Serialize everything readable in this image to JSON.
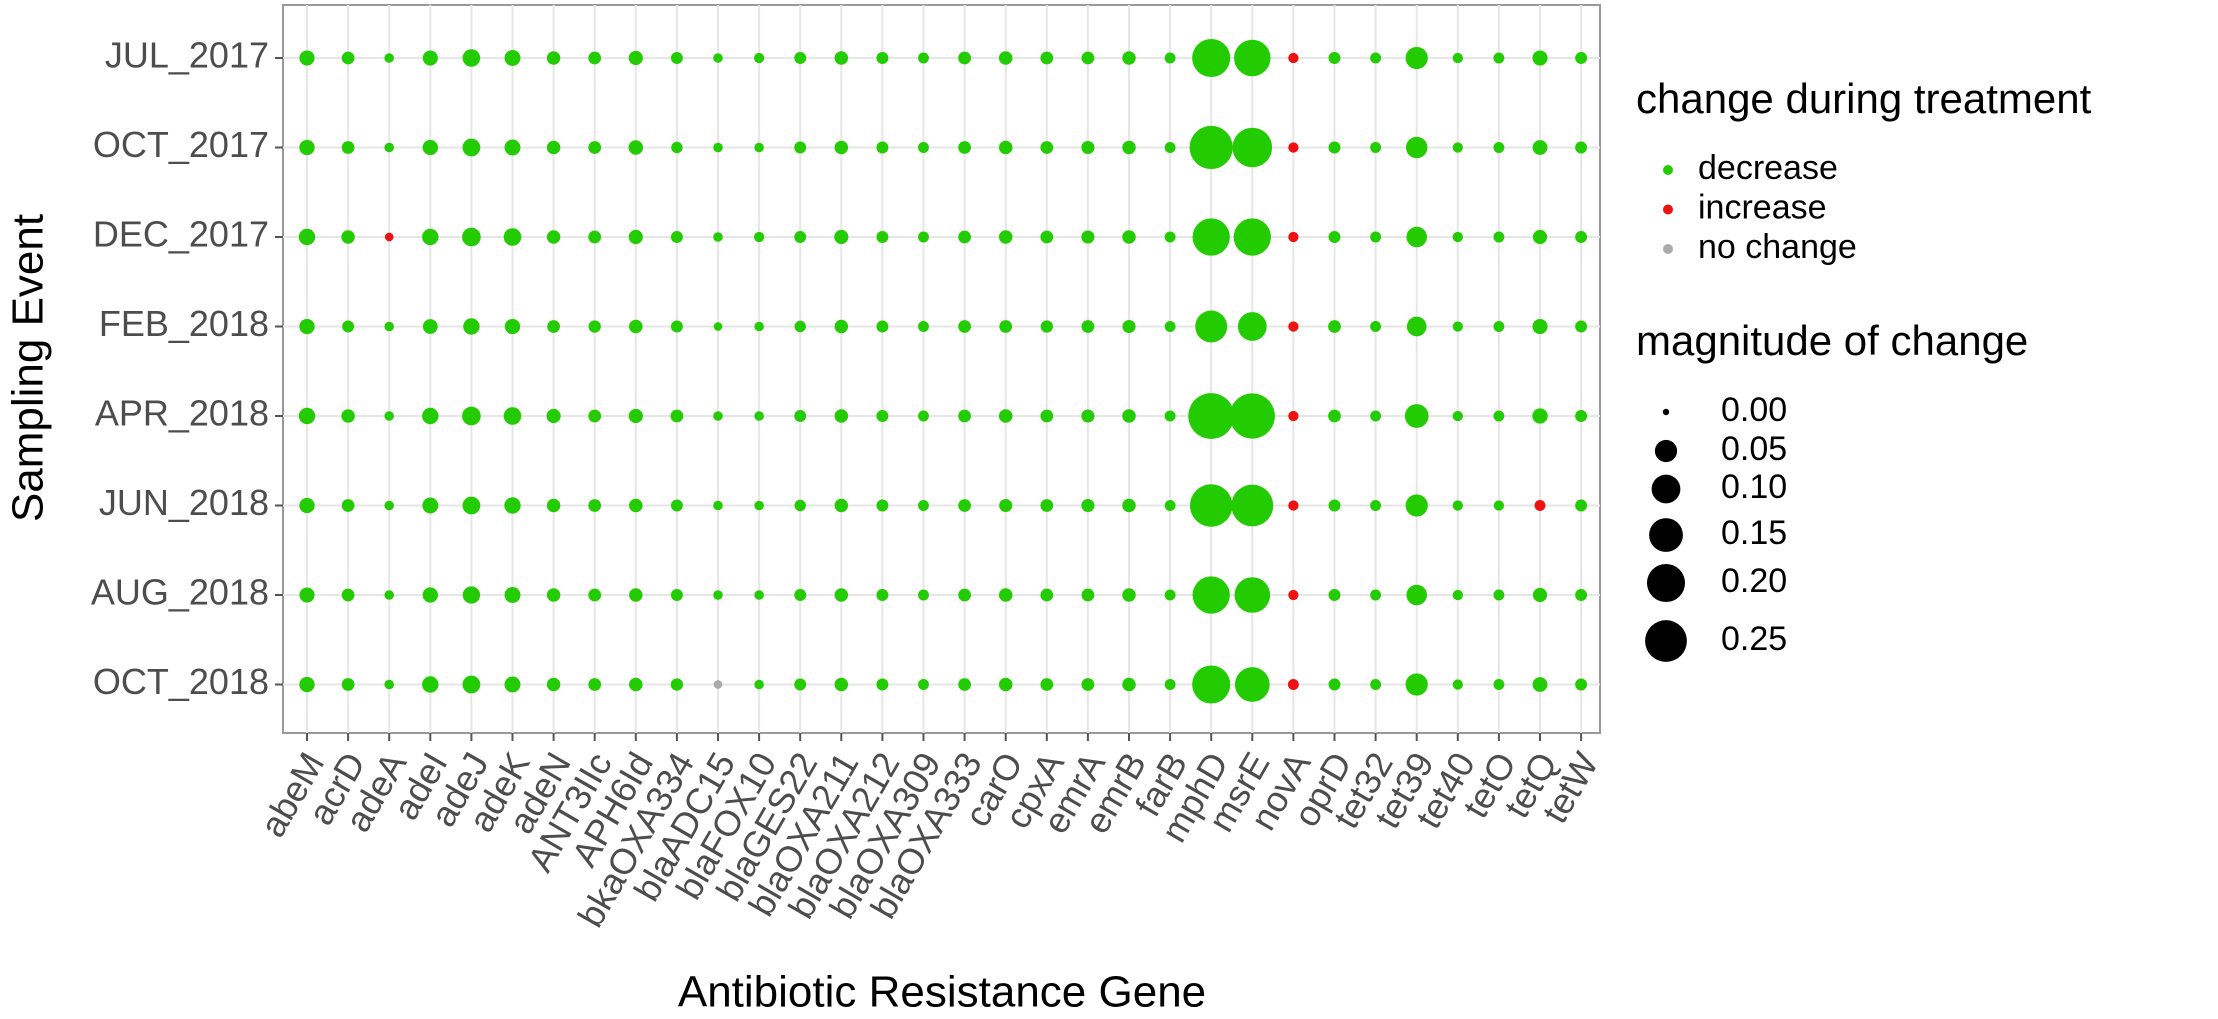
{
  "chart_data": {
    "type": "dotgrid",
    "x_label": "Antibiotic Resistance Gene",
    "y_label": "Sampling Event",
    "genes": [
      "abeM",
      "acrD",
      "adeA",
      "adeI",
      "adeJ",
      "adeK",
      "adeN",
      "ANT3IIc",
      "APH6Id",
      "bkaOXA334",
      "blaADC15",
      "blaFOX10",
      "blaGES22",
      "blaOXA211",
      "blaOXA212",
      "blaOXA309",
      "blaOXA333",
      "carO",
      "cpxA",
      "emrA",
      "emrB",
      "farB",
      "mphD",
      "msrE",
      "novA",
      "oprD",
      "tet32",
      "tet39",
      "tet40",
      "tetO",
      "tetQ",
      "tetW"
    ],
    "events": [
      "JUL_2017",
      "OCT_2017",
      "DEC_2017",
      "FEB_2018",
      "APR_2018",
      "JUN_2018",
      "AUG_2018",
      "OCT_2018"
    ],
    "color_legend": {
      "title": "change during treatment",
      "categories": [
        {
          "name": "decrease",
          "color": "#22cc00"
        },
        {
          "name": "increase",
          "color": "#ee1111"
        },
        {
          "name": "no change",
          "color": "#aaaaaa"
        }
      ]
    },
    "size_legend": {
      "title": "magnitude of change",
      "values": [
        {
          "value": 0,
          "label": "0.00"
        },
        {
          "value": 0.05,
          "label": "0.05"
        },
        {
          "value": 0.1,
          "label": "0.10"
        },
        {
          "value": 0.15,
          "label": "0.15"
        },
        {
          "value": 0.2,
          "label": "0.20"
        },
        {
          "value": 0.25,
          "label": "0.25"
        }
      ]
    },
    "magnitude": [
      [
        0.015,
        0.008,
        0.002,
        0.015,
        0.025,
        0.018,
        0.01,
        0.008,
        0.012,
        0.006,
        0.002,
        0.003,
        0.006,
        0.01,
        0.006,
        0.004,
        0.008,
        0.01,
        0.008,
        0.008,
        0.01,
        0.004,
        0.2,
        0.18,
        0.003,
        0.006,
        0.004,
        0.05,
        0.003,
        0.004,
        0.015,
        0.006
      ],
      [
        0.016,
        0.008,
        0.002,
        0.016,
        0.026,
        0.018,
        0.01,
        0.008,
        0.013,
        0.005,
        0.002,
        0.002,
        0.006,
        0.01,
        0.006,
        0.004,
        0.008,
        0.01,
        0.008,
        0.009,
        0.01,
        0.004,
        0.27,
        0.22,
        0.003,
        0.006,
        0.004,
        0.045,
        0.003,
        0.004,
        0.014,
        0.006
      ],
      [
        0.02,
        0.01,
        0.001,
        0.02,
        0.03,
        0.025,
        0.01,
        0.008,
        0.012,
        0.006,
        0.002,
        0.003,
        0.006,
        0.012,
        0.006,
        0.004,
        0.008,
        0.01,
        0.008,
        0.009,
        0.01,
        0.004,
        0.19,
        0.19,
        0.003,
        0.006,
        0.004,
        0.04,
        0.003,
        0.004,
        0.012,
        0.006
      ],
      [
        0.016,
        0.006,
        0.002,
        0.014,
        0.02,
        0.016,
        0.008,
        0.007,
        0.01,
        0.006,
        0.001,
        0.002,
        0.005,
        0.01,
        0.006,
        0.004,
        0.008,
        0.008,
        0.007,
        0.008,
        0.009,
        0.004,
        0.13,
        0.1,
        0.003,
        0.008,
        0.004,
        0.035,
        0.003,
        0.004,
        0.015,
        0.006
      ],
      [
        0.02,
        0.01,
        0.002,
        0.02,
        0.03,
        0.025,
        0.012,
        0.008,
        0.012,
        0.008,
        0.002,
        0.002,
        0.006,
        0.01,
        0.006,
        0.004,
        0.008,
        0.01,
        0.008,
        0.009,
        0.01,
        0.004,
        0.31,
        0.3,
        0.003,
        0.008,
        0.004,
        0.06,
        0.003,
        0.004,
        0.016,
        0.006
      ],
      [
        0.016,
        0.008,
        0.002,
        0.018,
        0.026,
        0.02,
        0.01,
        0.008,
        0.01,
        0.006,
        0.002,
        0.002,
        0.005,
        0.01,
        0.006,
        0.004,
        0.008,
        0.009,
        0.008,
        0.009,
        0.01,
        0.004,
        0.26,
        0.25,
        0.003,
        0.006,
        0.004,
        0.05,
        0.003,
        0.003,
        0.004,
        0.006
      ],
      [
        0.015,
        0.008,
        0.002,
        0.016,
        0.024,
        0.018,
        0.01,
        0.008,
        0.01,
        0.006,
        0.002,
        0.002,
        0.006,
        0.01,
        0.006,
        0.004,
        0.008,
        0.01,
        0.008,
        0.008,
        0.01,
        0.004,
        0.19,
        0.17,
        0.003,
        0.006,
        0.004,
        0.04,
        0.003,
        0.004,
        0.012,
        0.006
      ],
      [
        0.016,
        0.008,
        0.002,
        0.02,
        0.026,
        0.018,
        0.01,
        0.008,
        0.01,
        0.007,
        0.001,
        0.002,
        0.006,
        0.01,
        0.006,
        0.004,
        0.008,
        0.01,
        0.008,
        0.008,
        0.01,
        0.004,
        0.2,
        0.16,
        0.004,
        0.006,
        0.004,
        0.05,
        0.003,
        0.004,
        0.014,
        0.006
      ]
    ],
    "change": [
      [
        "decrease",
        "decrease",
        "decrease",
        "decrease",
        "decrease",
        "decrease",
        "decrease",
        "decrease",
        "decrease",
        "decrease",
        "decrease",
        "decrease",
        "decrease",
        "decrease",
        "decrease",
        "decrease",
        "decrease",
        "decrease",
        "decrease",
        "decrease",
        "decrease",
        "decrease",
        "decrease",
        "decrease",
        "increase",
        "decrease",
        "decrease",
        "decrease",
        "decrease",
        "decrease",
        "decrease",
        "decrease"
      ],
      [
        "decrease",
        "decrease",
        "decrease",
        "decrease",
        "decrease",
        "decrease",
        "decrease",
        "decrease",
        "decrease",
        "decrease",
        "decrease",
        "decrease",
        "decrease",
        "decrease",
        "decrease",
        "decrease",
        "decrease",
        "decrease",
        "decrease",
        "decrease",
        "decrease",
        "decrease",
        "decrease",
        "decrease",
        "increase",
        "decrease",
        "decrease",
        "decrease",
        "decrease",
        "decrease",
        "decrease",
        "decrease"
      ],
      [
        "decrease",
        "decrease",
        "increase",
        "decrease",
        "decrease",
        "decrease",
        "decrease",
        "decrease",
        "decrease",
        "decrease",
        "decrease",
        "decrease",
        "decrease",
        "decrease",
        "decrease",
        "decrease",
        "decrease",
        "decrease",
        "decrease",
        "decrease",
        "decrease",
        "decrease",
        "decrease",
        "decrease",
        "increase",
        "decrease",
        "decrease",
        "decrease",
        "decrease",
        "decrease",
        "decrease",
        "decrease"
      ],
      [
        "decrease",
        "decrease",
        "decrease",
        "decrease",
        "decrease",
        "decrease",
        "decrease",
        "decrease",
        "decrease",
        "decrease",
        "decrease",
        "decrease",
        "decrease",
        "decrease",
        "decrease",
        "decrease",
        "decrease",
        "decrease",
        "decrease",
        "decrease",
        "decrease",
        "decrease",
        "decrease",
        "decrease",
        "increase",
        "decrease",
        "decrease",
        "decrease",
        "decrease",
        "decrease",
        "decrease",
        "decrease"
      ],
      [
        "decrease",
        "decrease",
        "decrease",
        "decrease",
        "decrease",
        "decrease",
        "decrease",
        "decrease",
        "decrease",
        "decrease",
        "decrease",
        "decrease",
        "decrease",
        "decrease",
        "decrease",
        "decrease",
        "decrease",
        "decrease",
        "decrease",
        "decrease",
        "decrease",
        "decrease",
        "decrease",
        "decrease",
        "increase",
        "decrease",
        "decrease",
        "decrease",
        "decrease",
        "decrease",
        "decrease",
        "decrease"
      ],
      [
        "decrease",
        "decrease",
        "decrease",
        "decrease",
        "decrease",
        "decrease",
        "decrease",
        "decrease",
        "decrease",
        "decrease",
        "decrease",
        "decrease",
        "decrease",
        "decrease",
        "decrease",
        "decrease",
        "decrease",
        "decrease",
        "decrease",
        "decrease",
        "decrease",
        "decrease",
        "decrease",
        "decrease",
        "increase",
        "decrease",
        "decrease",
        "decrease",
        "decrease",
        "decrease",
        "increase",
        "decrease"
      ],
      [
        "decrease",
        "decrease",
        "decrease",
        "decrease",
        "decrease",
        "decrease",
        "decrease",
        "decrease",
        "decrease",
        "decrease",
        "decrease",
        "decrease",
        "decrease",
        "decrease",
        "decrease",
        "decrease",
        "decrease",
        "decrease",
        "decrease",
        "decrease",
        "decrease",
        "decrease",
        "decrease",
        "decrease",
        "increase",
        "decrease",
        "decrease",
        "decrease",
        "decrease",
        "decrease",
        "decrease",
        "decrease"
      ],
      [
        "decrease",
        "decrease",
        "decrease",
        "decrease",
        "decrease",
        "decrease",
        "decrease",
        "decrease",
        "decrease",
        "decrease",
        "no change",
        "decrease",
        "decrease",
        "decrease",
        "decrease",
        "decrease",
        "decrease",
        "decrease",
        "decrease",
        "decrease",
        "decrease",
        "decrease",
        "decrease",
        "decrease",
        "increase",
        "decrease",
        "decrease",
        "decrease",
        "decrease",
        "decrease",
        "decrease",
        "decrease"
      ]
    ]
  }
}
